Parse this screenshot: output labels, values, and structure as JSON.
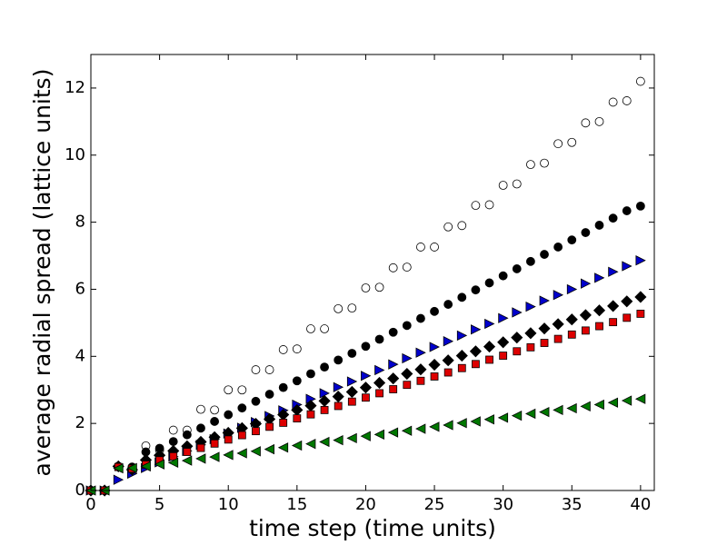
{
  "chart_data": {
    "type": "scatter",
    "x_label": "time step (time units)",
    "y_label": "average radial spread (lattice units)",
    "xlim": [
      0,
      41
    ],
    "ylim": [
      0,
      13
    ],
    "xticks": [
      0,
      5,
      10,
      15,
      20,
      25,
      30,
      35,
      40
    ],
    "yticks": [
      0,
      2,
      4,
      6,
      8,
      10,
      12
    ],
    "x": [
      0,
      1,
      2,
      3,
      4,
      5,
      6,
      7,
      8,
      9,
      10,
      11,
      12,
      13,
      14,
      15,
      16,
      17,
      18,
      19,
      20,
      21,
      22,
      23,
      24,
      25,
      26,
      27,
      28,
      29,
      30,
      31,
      32,
      33,
      34,
      35,
      36,
      37,
      38,
      39,
      40
    ],
    "series": [
      {
        "marker": "circle",
        "color": "#ffffff",
        "edge": "#000000",
        "values": [
          0,
          0,
          0.72,
          0.65,
          1.33,
          1.2,
          1.8,
          1.8,
          2.42,
          2.4,
          3.0,
          3.0,
          3.6,
          3.6,
          4.2,
          4.22,
          4.82,
          4.82,
          5.42,
          5.44,
          6.04,
          6.06,
          6.64,
          6.66,
          7.26,
          7.26,
          7.86,
          7.9,
          8.5,
          8.52,
          9.1,
          9.14,
          9.72,
          9.76,
          10.34,
          10.38,
          10.96,
          11.0,
          11.58,
          11.62,
          12.2
        ]
      },
      {
        "marker": "circle",
        "color": "#000000",
        "edge": "#000000",
        "values": [
          0,
          0,
          0.72,
          0.7,
          1.15,
          1.26,
          1.46,
          1.66,
          1.86,
          2.06,
          2.26,
          2.46,
          2.66,
          2.87,
          3.07,
          3.27,
          3.48,
          3.68,
          3.89,
          4.09,
          4.3,
          4.51,
          4.72,
          4.92,
          5.13,
          5.34,
          5.55,
          5.76,
          5.98,
          6.19,
          6.4,
          6.61,
          6.83,
          7.04,
          7.26,
          7.47,
          7.69,
          7.91,
          8.12,
          8.34,
          8.48
        ]
      },
      {
        "marker": "triangle-right",
        "color": "#0000cc",
        "edge": "#000000",
        "values": [
          0,
          0,
          0.32,
          0.5,
          0.67,
          0.84,
          1.01,
          1.18,
          1.36,
          1.53,
          1.7,
          1.87,
          2.04,
          2.22,
          2.39,
          2.56,
          2.73,
          2.9,
          3.08,
          3.25,
          3.42,
          3.59,
          3.76,
          3.94,
          4.11,
          4.28,
          4.45,
          4.62,
          4.8,
          4.97,
          5.14,
          5.31,
          5.48,
          5.66,
          5.83,
          6.0,
          6.17,
          6.34,
          6.52,
          6.69,
          6.86
        ]
      },
      {
        "marker": "diamond",
        "color": "#000000",
        "edge": "#000000",
        "values": [
          0,
          0,
          0.72,
          0.62,
          0.91,
          1.05,
          1.18,
          1.32,
          1.45,
          1.59,
          1.72,
          1.86,
          1.99,
          2.13,
          2.26,
          2.4,
          2.53,
          2.67,
          2.8,
          2.94,
          3.07,
          3.21,
          3.34,
          3.48,
          3.61,
          3.75,
          3.88,
          4.02,
          4.15,
          4.29,
          4.42,
          4.56,
          4.69,
          4.83,
          4.96,
          5.1,
          5.23,
          5.37,
          5.5,
          5.64,
          5.77
        ]
      },
      {
        "marker": "square",
        "color": "#dd0000",
        "edge": "#000000",
        "values": [
          0,
          0,
          0.7,
          0.65,
          0.77,
          0.9,
          1.02,
          1.15,
          1.27,
          1.4,
          1.52,
          1.65,
          1.77,
          1.9,
          2.02,
          2.15,
          2.27,
          2.4,
          2.52,
          2.65,
          2.77,
          2.9,
          3.02,
          3.15,
          3.27,
          3.4,
          3.52,
          3.65,
          3.77,
          3.9,
          4.02,
          4.15,
          4.27,
          4.4,
          4.52,
          4.65,
          4.77,
          4.9,
          5.02,
          5.15,
          5.27
        ]
      },
      {
        "marker": "triangle-left",
        "color": "#007700",
        "edge": "#000000",
        "values": [
          0,
          0,
          0.66,
          0.67,
          0.72,
          0.78,
          0.83,
          0.89,
          0.95,
          1.0,
          1.06,
          1.11,
          1.17,
          1.23,
          1.28,
          1.34,
          1.39,
          1.45,
          1.5,
          1.56,
          1.62,
          1.67,
          1.73,
          1.78,
          1.84,
          1.9,
          1.95,
          2.01,
          2.06,
          2.12,
          2.17,
          2.23,
          2.29,
          2.34,
          2.4,
          2.45,
          2.51,
          2.56,
          2.62,
          2.68,
          2.73
        ]
      }
    ]
  }
}
